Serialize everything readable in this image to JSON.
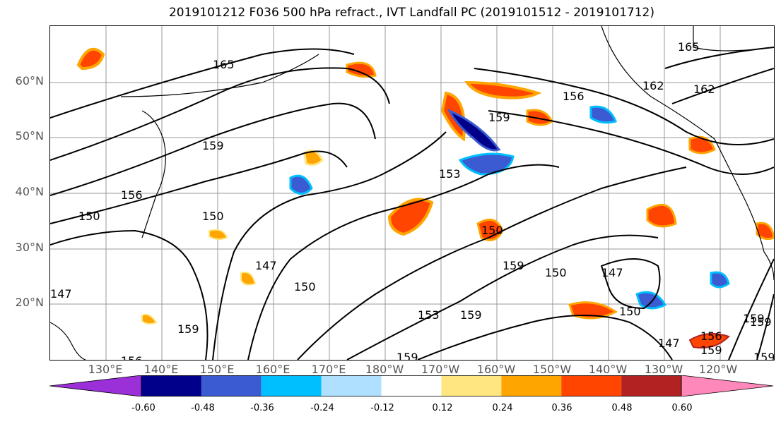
{
  "title": "2019101212 F036 500 hPa refract., IVT Landfall PC (2019101512 - 2019101712)",
  "lat_labels": [
    "60°N",
    "50°N",
    "40°N",
    "30°N",
    "20°N"
  ],
  "lon_labels": [
    "130°E",
    "140°E",
    "150°E",
    "160°E",
    "170°E",
    "180°W",
    "170°W",
    "160°W",
    "150°W",
    "140°W",
    "130°W",
    "120°W"
  ],
  "contour_labels": [
    "165",
    "165",
    "162",
    "162",
    "159",
    "159",
    "159",
    "159",
    "156",
    "156",
    "156",
    "153",
    "153",
    "150",
    "150",
    "150",
    "150",
    "150",
    "150",
    "147",
    "147",
    "147",
    "147",
    "159",
    "159",
    "159",
    "156",
    "159",
    "159",
    "159"
  ],
  "colorbar": {
    "ticks": [
      "-0.60",
      "-0.48",
      "-0.36",
      "-0.24",
      "-0.12",
      "0.12",
      "0.24",
      "0.36",
      "0.48",
      "0.60"
    ],
    "colors": [
      "#9b30d9",
      "#00008b",
      "#3a5bd1",
      "#00bfff",
      "#b0e0ff",
      "#ffffff",
      "#ffe680",
      "#ffa500",
      "#ff4500",
      "#b22222",
      "#ff88bb"
    ]
  }
}
